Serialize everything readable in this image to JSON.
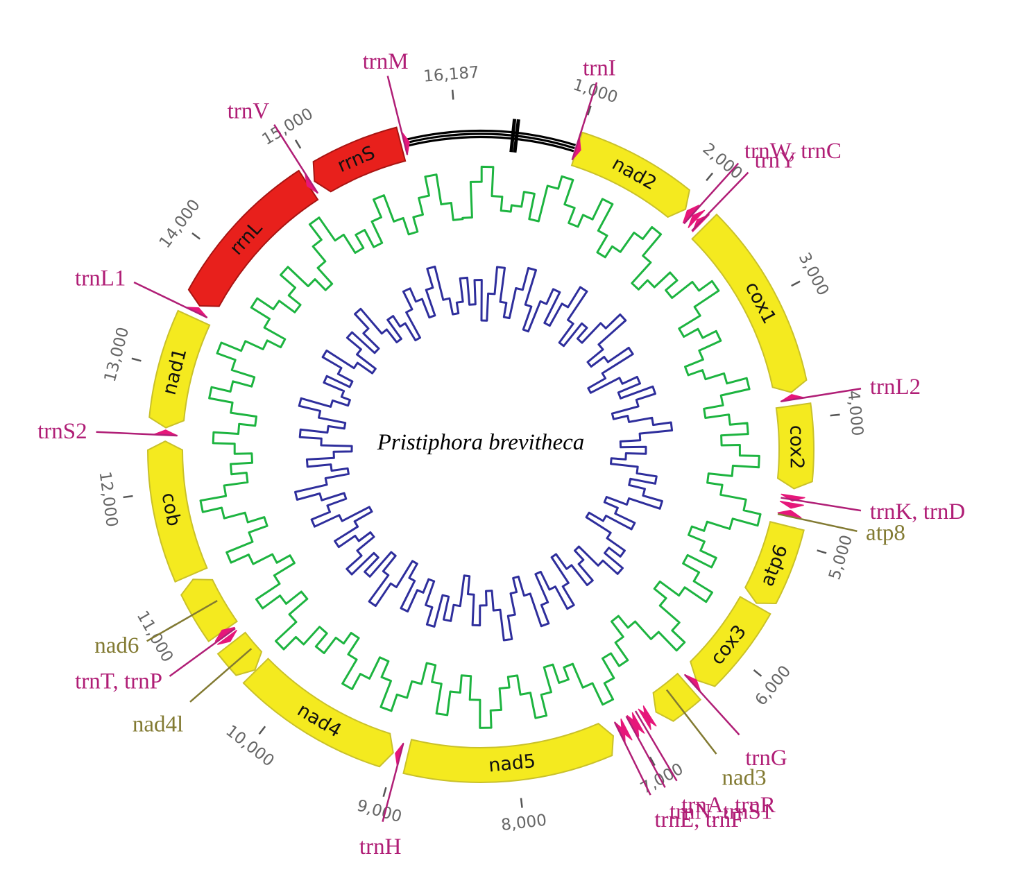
{
  "title": "Pristiphora brevitheca",
  "genome_length": 16187,
  "colors": {
    "protein": "#f4ea1f",
    "protein_stroke": "#c9c12a",
    "rrna": "#e8201c",
    "rrna_stroke": "#a81412",
    "trna": "#e6177a",
    "trna_label": "#b01e76",
    "pcg_label": "#827a32",
    "gc_skew": "#1db440",
    "at_skew": "#2e2e9c",
    "control": "#000000",
    "tick": "#555555"
  },
  "blocks": [
    {
      "name": "nad2",
      "type": "protein",
      "start": 1000,
      "end": 2020,
      "strand": 1
    },
    {
      "name": "cox1",
      "type": "protein",
      "start": 2230,
      "end": 3780,
      "strand": 1
    },
    {
      "name": "cox2",
      "type": "protein",
      "start": 3890,
      "end": 4570,
      "strand": 1
    },
    {
      "name": "atp6",
      "type": "protein",
      "start": 4880,
      "end": 5560,
      "strand": 1
    },
    {
      "name": "cox3",
      "type": "protein",
      "start": 5580,
      "end": 6360,
      "strand": 1
    },
    {
      "name": "",
      "type": "protein",
      "start": 6440,
      "end": 6780,
      "strand": 1
    },
    {
      "name": "nad5",
      "type": "protein",
      "start": 7180,
      "end": 8900,
      "strand": -1
    },
    {
      "name": "nad4",
      "type": "protein",
      "start": 9020,
      "end": 10340,
      "strand": -1
    },
    {
      "name": "",
      "type": "protein",
      "start": 10350,
      "end": 10640,
      "strand": -1
    },
    {
      "name": "",
      "type": "protein",
      "start": 10760,
      "end": 11250,
      "strand": 1
    },
    {
      "name": "cob",
      "type": "protein",
      "start": 11290,
      "end": 12410,
      "strand": 1
    },
    {
      "name": "nad1",
      "type": "protein",
      "start": 12520,
      "end": 13450,
      "strand": -1
    },
    {
      "name": "rrnL",
      "type": "rrna",
      "start": 13560,
      "end": 14900,
      "strand": -1
    },
    {
      "name": "rrnS",
      "type": "rrna",
      "start": 14960,
      "end": 15730,
      "strand": -1
    }
  ],
  "trna_arrows": [
    {
      "pos": 990,
      "strand": 1
    },
    {
      "pos": 2080,
      "strand": -1
    },
    {
      "pos": 2140,
      "strand": -1
    },
    {
      "pos": 2190,
      "strand": -1
    },
    {
      "pos": 3840,
      "strand": -1
    },
    {
      "pos": 4630,
      "strand": 1
    },
    {
      "pos": 4690,
      "strand": 1
    },
    {
      "pos": 4790,
      "strand": -1
    },
    {
      "pos": 6400,
      "strand": -1
    },
    {
      "pos": 6840,
      "strand": 1
    },
    {
      "pos": 6890,
      "strand": -1
    },
    {
      "pos": 6950,
      "strand": 1
    },
    {
      "pos": 7000,
      "strand": -1
    },
    {
      "pos": 7060,
      "strand": 1
    },
    {
      "pos": 7120,
      "strand": -1
    },
    {
      "pos": 8960,
      "strand": 1
    },
    {
      "pos": 10700,
      "strand": -1
    },
    {
      "pos": 10730,
      "strand": 1
    },
    {
      "pos": 12460,
      "strand": 1
    },
    {
      "pos": 13500,
      "strand": 1
    },
    {
      "pos": 14930,
      "strand": -1
    },
    {
      "pos": 15760,
      "strand": 1
    }
  ],
  "position_ticks": [
    {
      "pos": 1000,
      "label": "1,000"
    },
    {
      "pos": 2000,
      "label": "2,000"
    },
    {
      "pos": 3000,
      "label": "3,000"
    },
    {
      "pos": 4000,
      "label": "4,000"
    },
    {
      "pos": 5000,
      "label": "5,000"
    },
    {
      "pos": 6000,
      "label": "6,000"
    },
    {
      "pos": 7000,
      "label": "7,000"
    },
    {
      "pos": 8000,
      "label": "8,000"
    },
    {
      "pos": 9000,
      "label": "9,000"
    },
    {
      "pos": 10000,
      "label": "10,000"
    },
    {
      "pos": 11000,
      "label": "11,000"
    },
    {
      "pos": 12000,
      "label": "12,000"
    },
    {
      "pos": 13000,
      "label": "13,000"
    },
    {
      "pos": 14000,
      "label": "14,000"
    },
    {
      "pos": 15000,
      "label": "15,000"
    },
    {
      "pos": 16187,
      "label": "16,187"
    }
  ],
  "callouts": [
    {
      "text": "trnI",
      "pos": 990,
      "kind": "trna"
    },
    {
      "text": "trnW,  trnC",
      "pos": 2090,
      "kind": "trna"
    },
    {
      "text": "trnY",
      "pos": 2180,
      "kind": "trna"
    },
    {
      "text": "trnL2",
      "pos": 3840,
      "kind": "trna"
    },
    {
      "text": "trnK,  trnD",
      "pos": 4660,
      "kind": "trna"
    },
    {
      "text": "atp8",
      "pos": 4800,
      "kind": "pcg"
    },
    {
      "text": "trnG",
      "pos": 6400,
      "kind": "trna"
    },
    {
      "text": "nad3",
      "pos": 6600,
      "kind": "pcg"
    },
    {
      "text": "trnA,  trnR",
      "pos": 6920,
      "kind": "trna"
    },
    {
      "text": "trnN,  trnS1",
      "pos": 7010,
      "kind": "trna"
    },
    {
      "text": "trnE,  trnF",
      "pos": 7120,
      "kind": "trna"
    },
    {
      "text": "trnH",
      "pos": 8960,
      "kind": "trna"
    },
    {
      "text": "nad4l",
      "pos": 10500,
      "kind": "pcg"
    },
    {
      "text": "trnT,  trnP",
      "pos": 10720,
      "kind": "trna"
    },
    {
      "text": "nad6",
      "pos": 11000,
      "kind": "pcg"
    },
    {
      "text": "trnS2",
      "pos": 12460,
      "kind": "trna"
    },
    {
      "text": "trnL1",
      "pos": 13500,
      "kind": "trna"
    },
    {
      "text": "trnV",
      "pos": 14930,
      "kind": "trna"
    },
    {
      "text": "trnM",
      "pos": 15760,
      "kind": "trna"
    }
  ],
  "gc_skew": [
    0.55,
    0.22,
    0.08,
    0.35,
    0.48,
    0.42,
    0.28,
    0.52,
    0.18,
    0.06,
    0.3,
    0.45,
    0.33,
    0.12,
    0.4,
    0.58,
    0.46,
    0.24,
    0.1,
    0.36,
    0.62,
    0.5,
    0.3,
    0.44,
    0.2,
    0.05,
    0.32,
    0.55,
    0.4,
    0.26,
    0.48,
    0.66,
    0.52,
    0.34,
    0.15,
    0.42,
    0.6,
    0.38,
    0.22,
    0.47,
    0.3,
    0.12,
    0.36,
    0.58,
    0.44,
    0.2,
    0.04,
    0.28,
    0.5,
    0.62,
    0.46,
    0.3,
    0.55,
    0.38,
    0.18,
    0.42,
    0.64,
    0.5,
    0.26,
    0.1,
    0.34,
    0.56,
    0.7,
    0.52,
    0.32,
    0.46,
    0.25,
    0.08,
    0.3,
    0.54,
    0.42,
    0.6,
    0.36,
    0.16,
    0.4,
    0.58,
    0.48,
    0.28,
    0.12,
    0.38,
    0.6,
    0.44,
    0.22,
    0.5,
    0.66,
    0.46,
    0.3,
    0.14,
    0.4,
    0.56,
    0.34,
    0.18,
    0.44,
    0.62,
    0.5,
    0.32,
    0.48,
    0.26,
    0.1,
    0.36,
    0.58,
    0.4,
    0.2,
    0.46,
    0.68,
    0.54,
    0.34,
    0.16,
    0.42,
    0.6,
    0.44,
    0.24,
    0.06,
    0.3,
    0.52,
    0.38,
    0.58,
    0.42,
    0.22,
    0.45,
    0.6,
    0.36,
    0.14,
    0.32,
    0.5,
    0.28,
    0.1,
    0.3,
    0.48,
    0.62,
    0.4,
    0.2,
    0.38,
    0.56,
    0.42,
    0.24,
    0.5,
    0.64,
    0.44,
    0.26,
    0.08,
    0.34,
    0.54,
    0.4,
    0.58,
    0.36,
    0.18,
    0.44,
    0.6,
    0.46,
    0.3,
    0.12,
    0.4,
    0.56
  ],
  "at_skew": [
    0.62,
    0.35,
    0.8,
    0.5,
    0.2,
    0.58,
    0.74,
    0.4,
    0.15,
    0.55,
    0.82,
    0.46,
    0.28,
    0.66,
    0.38,
    0.12,
    0.5,
    0.76,
    0.44,
    0.6,
    0.3,
    0.08,
    0.48,
    0.7,
    0.52,
    0.24,
    0.64,
    0.86,
    0.5,
    0.32,
    0.58,
    0.2,
    0.42,
    0.72,
    0.56,
    0.3,
    0.1,
    0.46,
    0.68,
    0.4,
    0.62,
    0.78,
    0.48,
    0.26,
    0.54,
    0.36,
    0.14,
    0.5,
    0.74,
    0.58,
    0.34,
    0.66,
    0.84,
    0.52,
    0.28,
    0.44,
    0.18,
    0.4,
    0.7,
    0.56,
    0.32,
    0.6,
    0.8,
    0.46,
    0.22,
    0.5,
    0.72,
    0.38,
    0.16,
    0.54,
    0.76,
    0.6,
    0.36,
    0.1,
    0.44,
    0.66,
    0.5,
    0.28,
    0.62,
    0.82,
    0.48,
    0.3,
    0.56,
    0.2,
    0.4,
    0.68,
    0.52,
    0.26,
    0.6,
    0.78,
    0.44,
    0.14,
    0.5,
    0.72,
    0.36,
    0.58,
    0.24,
    0.46,
    0.7,
    0.54,
    0.32,
    0.62,
    0.84,
    0.5,
    0.2,
    0.42,
    0.64,
    0.38,
    0.12,
    0.48,
    0.74,
    0.56,
    0.3,
    0.6,
    0.8,
    0.46,
    0.22,
    0.52,
    0.7,
    0.4,
    0.16,
    0.5,
    0.68,
    0.58,
    0.34,
    0.62,
    0.44,
    0.2,
    0.56,
    0.76,
    0.5,
    0.3,
    0.64,
    0.4,
    0.18,
    0.54,
    0.72,
    0.46,
    0.6,
    0.82,
    0.5,
    0.28,
    0.44,
    0.66,
    0.36,
    0.14,
    0.52,
    0.7,
    0.58,
    0.32
  ]
}
